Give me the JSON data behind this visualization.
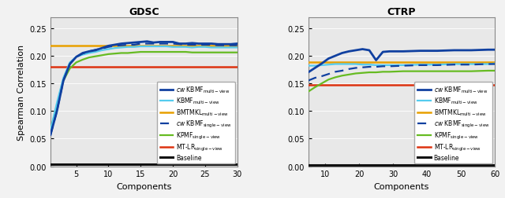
{
  "gdsc": {
    "title": "GDSC",
    "xlim": [
      1,
      30
    ],
    "ylim": [
      0,
      0.27
    ],
    "yticks": [
      0,
      0.05,
      0.1,
      0.15,
      0.2,
      0.25
    ],
    "xticks": [
      5,
      10,
      15,
      20,
      25,
      30
    ],
    "components": [
      1,
      2,
      3,
      4,
      5,
      6,
      7,
      8,
      9,
      10,
      11,
      12,
      13,
      14,
      15,
      16,
      17,
      18,
      19,
      20,
      21,
      22,
      23,
      24,
      25,
      26,
      27,
      28,
      29,
      30
    ],
    "cw_kbmf_multi": [
      0.057,
      0.1,
      0.155,
      0.185,
      0.198,
      0.205,
      0.208,
      0.21,
      0.214,
      0.218,
      0.22,
      0.222,
      0.223,
      0.224,
      0.225,
      0.226,
      0.224,
      0.225,
      0.225,
      0.225,
      0.222,
      0.222,
      0.223,
      0.222,
      0.222,
      0.222,
      0.221,
      0.221,
      0.221,
      0.222
    ],
    "kbmf_multi": [
      0.065,
      0.115,
      0.16,
      0.188,
      0.198,
      0.202,
      0.205,
      0.207,
      0.21,
      0.212,
      0.214,
      0.215,
      0.216,
      0.216,
      0.217,
      0.217,
      0.217,
      0.217,
      0.217,
      0.216,
      0.216,
      0.216,
      0.215,
      0.216,
      0.216,
      0.215,
      0.215,
      0.215,
      0.215,
      0.215
    ],
    "bmtmkl_multi": 0.218,
    "cw_kbmf_single": [
      0.057,
      0.1,
      0.155,
      0.185,
      0.198,
      0.204,
      0.208,
      0.211,
      0.213,
      0.216,
      0.218,
      0.219,
      0.22,
      0.22,
      0.222,
      0.222,
      0.222,
      0.222,
      0.222,
      0.222,
      0.221,
      0.22,
      0.22,
      0.22,
      0.22,
      0.22,
      0.219,
      0.219,
      0.219,
      0.219
    ],
    "kpmf_single": [
      0.065,
      0.11,
      0.155,
      0.177,
      0.188,
      0.193,
      0.197,
      0.199,
      0.201,
      0.203,
      0.204,
      0.205,
      0.205,
      0.206,
      0.207,
      0.207,
      0.207,
      0.207,
      0.207,
      0.207,
      0.207,
      0.207,
      0.206,
      0.206,
      0.206,
      0.206,
      0.206,
      0.206,
      0.206,
      0.206
    ],
    "mt_lr_single": 0.18,
    "baseline": 0.003
  },
  "ctrp": {
    "title": "CTRP",
    "xlim": [
      5,
      60
    ],
    "ylim": [
      0,
      0.27
    ],
    "yticks": [
      0,
      0.05,
      0.1,
      0.15,
      0.2,
      0.25
    ],
    "xticks": [
      10,
      20,
      30,
      40,
      50,
      60
    ],
    "components": [
      5,
      7,
      9,
      11,
      13,
      15,
      17,
      19,
      21,
      23,
      25,
      27,
      29,
      33,
      38,
      43,
      48,
      53,
      58,
      60
    ],
    "cw_kbmf_multi": [
      0.17,
      0.178,
      0.186,
      0.195,
      0.2,
      0.205,
      0.208,
      0.21,
      0.212,
      0.21,
      0.192,
      0.207,
      0.208,
      0.208,
      0.209,
      0.209,
      0.21,
      0.21,
      0.211,
      0.211
    ],
    "kbmf_multi": [
      0.182,
      0.182,
      0.183,
      0.184,
      0.185,
      0.185,
      0.185,
      0.185,
      0.184,
      0.184,
      0.183,
      0.183,
      0.183,
      0.183,
      0.184,
      0.184,
      0.185,
      0.185,
      0.185,
      0.186
    ],
    "bmtmkl_multi": 0.188,
    "cw_kbmf_single": [
      0.155,
      0.16,
      0.163,
      0.167,
      0.171,
      0.173,
      0.176,
      0.178,
      0.179,
      0.18,
      0.18,
      0.181,
      0.181,
      0.182,
      0.183,
      0.183,
      0.184,
      0.184,
      0.185,
      0.185
    ],
    "kpmf_single": [
      0.135,
      0.143,
      0.15,
      0.157,
      0.161,
      0.164,
      0.166,
      0.168,
      0.169,
      0.17,
      0.17,
      0.171,
      0.171,
      0.172,
      0.172,
      0.172,
      0.172,
      0.172,
      0.173,
      0.173
    ],
    "mt_lr_single": 0.148,
    "baseline": 0.002
  },
  "colors": {
    "cw_kbmf_multi": "#1040A0",
    "kbmf_multi": "#55CCEE",
    "bmtmkl_multi": "#E8A000",
    "cw_kbmf_single": "#1040A0",
    "kpmf_single": "#66BB22",
    "mt_lr_single": "#DD3311",
    "baseline": "#111111"
  },
  "bg_color": "#E8E8E8",
  "ylabel": "Spearman Correlation",
  "xlabel": "Components"
}
